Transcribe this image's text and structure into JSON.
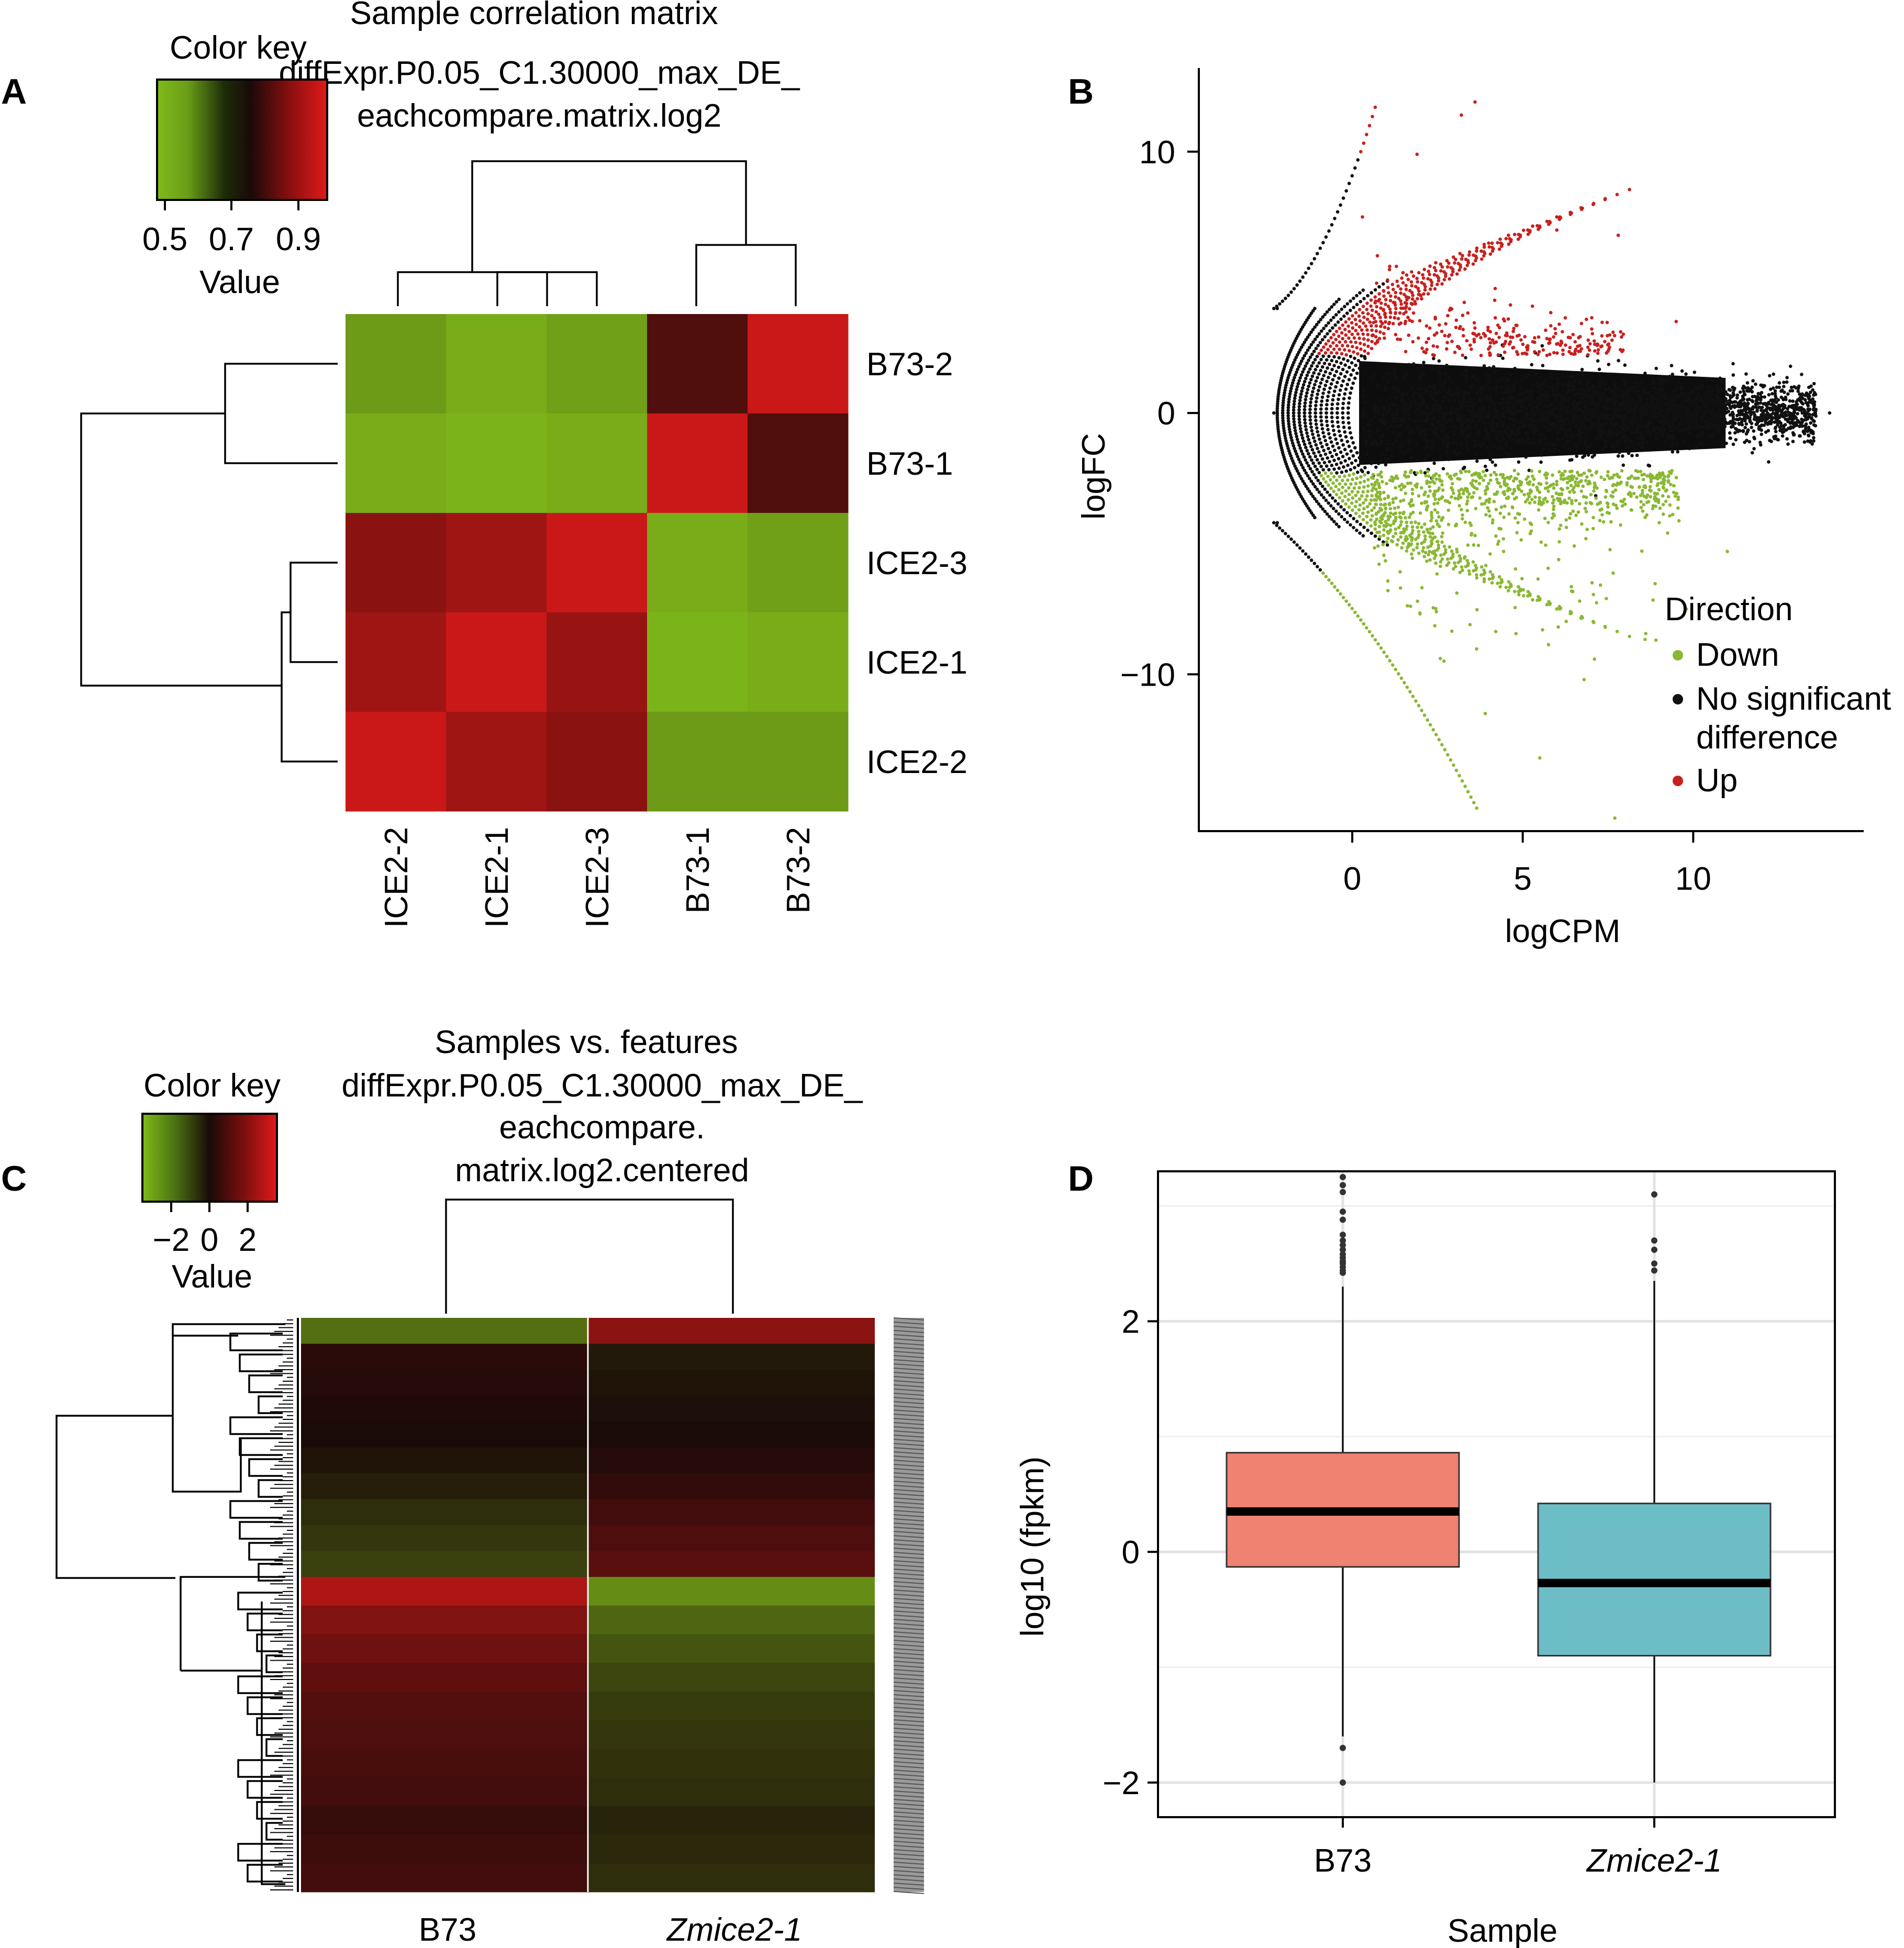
{
  "chart_data": [
    {
      "panel": "A",
      "type": "heatmap",
      "title": "Sample correlation matrix",
      "subtitle": [
        "diffExpr.P0.05_C1.30000_max_DE_",
        "eachcompare.matrix.log2"
      ],
      "color_key": {
        "title": "Color key",
        "xlabel": "Value",
        "ticks": [
          "0.5",
          "0.7",
          "0.9"
        ],
        "range": [
          0.45,
          1.0
        ],
        "low_color": "#7fba1a",
        "mid_color": "#1a0a08",
        "high_color": "#e01a1a"
      },
      "rows": [
        "B73-2",
        "B73-1",
        "ICE2-3",
        "ICE2-1",
        "ICE2-2"
      ],
      "columns": [
        "ICE2-2",
        "ICE2-1",
        "ICE2-3",
        "B73-1",
        "B73-2"
      ],
      "values": [
        [
          0.5,
          0.47,
          0.49,
          0.8,
          0.97
        ],
        [
          0.47,
          0.46,
          0.47,
          0.97,
          0.8
        ],
        [
          0.88,
          0.91,
          0.97,
          0.47,
          0.49
        ],
        [
          0.91,
          0.97,
          0.9,
          0.46,
          0.47
        ],
        [
          0.97,
          0.91,
          0.88,
          0.5,
          0.5
        ]
      ]
    },
    {
      "panel": "B",
      "type": "scatter",
      "xlabel": "logCPM",
      "ylabel": "logFC",
      "xlim": [
        -4.5,
        15.0
      ],
      "ylim": [
        -16.0,
        13.2
      ],
      "xticks": [
        "0",
        "5",
        "10"
      ],
      "yticks": [
        "10",
        "0",
        "−10"
      ],
      "legend": {
        "title": "Direction",
        "placement": "bottom-right",
        "entries": [
          {
            "label": "Down",
            "color": "#8ab833"
          },
          {
            "label": "No significant",
            "label2": "difference",
            "color": "#111111"
          },
          {
            "label": "Up",
            "color": "#c8201e"
          }
        ]
      },
      "notable_points": {
        "up": [
          [
            0.3,
            7.5
          ],
          [
            1.9,
            9.9
          ],
          [
            3.6,
            11.9
          ],
          [
            3.2,
            11.4
          ],
          [
            6.0,
            7.0
          ],
          [
            7.8,
            6.8
          ],
          [
            4.0,
            6.5
          ],
          [
            9.5,
            3.5
          ]
        ],
        "down": [
          [
            7.7,
            -15.5
          ],
          [
            5.5,
            -13.2
          ],
          [
            3.9,
            -11.5
          ],
          [
            6.8,
            -10.2
          ],
          [
            9.8,
            -7.5
          ],
          [
            11.0,
            -5.3
          ]
        ],
        "no_difference": [
          [
            -2.2,
            4.0
          ],
          [
            -2.2,
            -4.2
          ],
          [
            -2.3,
            0.0
          ],
          [
            14.0,
            0.0
          ],
          [
            13.0,
            0.3
          ]
        ]
      }
    },
    {
      "panel": "C",
      "type": "heatmap",
      "title": "Samples vs. features",
      "subtitle": [
        "diffExpr.P0.05_C1.30000_max_DE_",
        "eachcompare.",
        "matrix.log2.centered"
      ],
      "color_key": {
        "title": "Color key",
        "xlabel": "Value",
        "ticks": [
          "−2",
          "0",
          "2"
        ],
        "range": [
          -3.5,
          3.5
        ],
        "low_color": "#7fba1a",
        "mid_color": "#1a0a08",
        "high_color": "#e01a1a"
      },
      "columns": [
        "B73",
        "Zmice2-1"
      ],
      "column_italic": [
        false,
        true
      ],
      "cluster_blocks": [
        {
          "name": "upper cluster",
          "B73": [
            -2.0,
            0.3,
            0.2,
            0.1,
            0.0,
            -0.2,
            -0.4,
            -0.7,
            -0.9,
            -1.1
          ],
          "Zmice2-1": [
            2.0,
            -0.3,
            -0.2,
            -0.1,
            0.0,
            0.2,
            0.4,
            0.7,
            0.9,
            1.1
          ]
        },
        {
          "name": "lower cluster",
          "B73": [
            2.6,
            1.8,
            1.5,
            1.2,
            1.0,
            0.9,
            0.8,
            0.7,
            0.5,
            0.6,
            0.7
          ],
          "Zmice2-1": [
            -2.6,
            -1.8,
            -1.5,
            -1.2,
            -1.0,
            -0.9,
            -0.8,
            -0.7,
            -0.5,
            -0.6,
            -0.7
          ]
        }
      ]
    },
    {
      "panel": "D",
      "type": "box",
      "xlabel": "Sample",
      "ylabel": "log10 (fpkm)",
      "categories": [
        "B73",
        "Zmice2-1"
      ],
      "category_italic": [
        false,
        true
      ],
      "ylim": [
        -2.3,
        3.3
      ],
      "yticks": [
        "2",
        "0",
        "−2"
      ],
      "boxes": [
        {
          "category": "B73",
          "color": "#ef8270",
          "whisker_low": -1.6,
          "q1": -0.13,
          "median": 0.35,
          "q3": 0.86,
          "whisker_high": 2.3,
          "outliers": [
            3.25,
            3.18,
            3.12,
            2.95,
            2.88,
            2.75,
            2.7,
            2.66,
            2.62,
            2.58,
            2.55,
            2.52,
            2.5,
            2.47,
            2.44,
            2.42,
            -1.7,
            -2.0
          ]
        },
        {
          "category": "Zmice2-1",
          "color": "#6dbdc6",
          "whisker_low": -2.0,
          "q1": -0.9,
          "median": -0.27,
          "q3": 0.42,
          "whisker_high": 2.35,
          "outliers": [
            3.1,
            2.7,
            2.62,
            2.5,
            2.44
          ]
        }
      ]
    }
  ],
  "labels": {
    "a": "A",
    "b": "B",
    "c": "C",
    "d": "D"
  },
  "colors": {
    "up": "#c8201e",
    "down": "#8ab833",
    "ns": "#111111"
  }
}
